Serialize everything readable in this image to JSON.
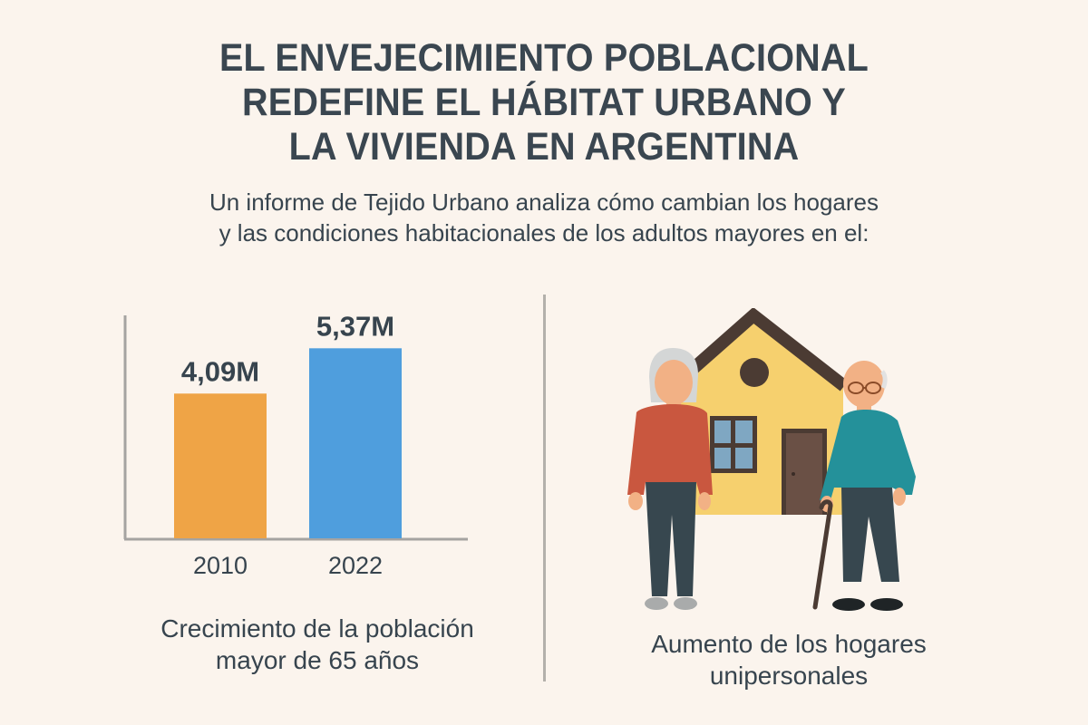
{
  "header": {
    "title_lines": [
      "EL ENVEJECIMIENTO POBLACIONAL",
      "REDEFINE EL HÁBITAT URBANO Y",
      "LA VIVIENDA EN ARGENTINA"
    ],
    "subtitle_lines": [
      "Un informe de Tejido Urbano analiza cómo cambian los hogares",
      "y las condiciones habitacionales de los adultos mayores en el:"
    ]
  },
  "chart_data": {
    "type": "bar",
    "title": "",
    "xlabel": "",
    "ylabel": "",
    "categories": [
      "2010",
      "2022"
    ],
    "values": [
      4.09,
      5.37
    ],
    "value_labels": [
      "4,09M",
      "5,37M"
    ],
    "units": "millones de personas",
    "ylim": [
      0,
      6.3
    ],
    "colors": [
      "#efa446",
      "#4f9edd"
    ],
    "grid": false,
    "legend": "none"
  },
  "captions": {
    "left_lines": [
      "Crecimiento de la población",
      "mayor de 65 años"
    ],
    "right_lines": [
      "Aumento de los hogares",
      "unipersonales"
    ]
  },
  "illustration": {
    "description": "Pareja de adultos mayores frente a una casa",
    "colors": {
      "house_wall": "#f6d06e",
      "roof": "#4b3b33",
      "window_glass": "#7fa7c2",
      "door": "#6a5045",
      "woman_sweater": "#c9573f",
      "man_sweater": "#24919a",
      "pants": "#37474f",
      "skin": "#f2b185",
      "hair": "#d4d6d6"
    }
  }
}
